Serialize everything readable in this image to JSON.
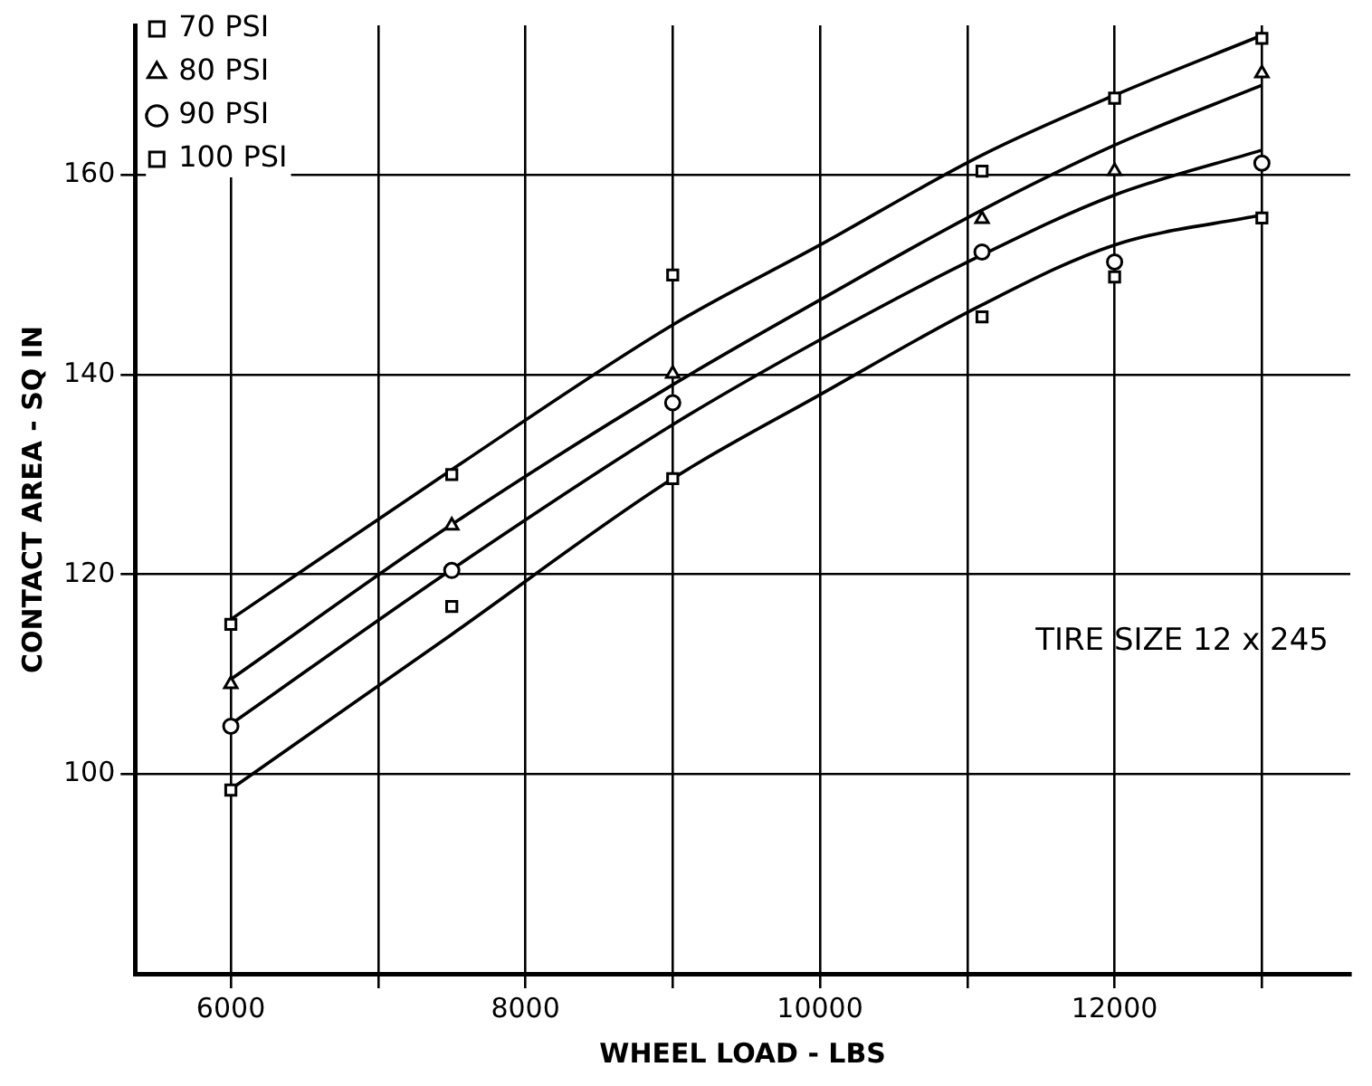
{
  "chart_data": {
    "type": "scatter",
    "xlabel": "WHEEL LOAD - LBS",
    "ylabel": "CONTACT AREA - SQ IN",
    "x": [
      6000,
      7500,
      9000,
      11100,
      12000,
      13000
    ],
    "series": [
      {
        "name": "70 PSI",
        "color": "#000000",
        "marker": "square",
        "values": [
          115,
          130,
          150,
          160.4,
          167.7,
          173.7
        ]
      },
      {
        "name": "80 PSI",
        "color": "#000000",
        "marker": "triangle",
        "values": [
          109,
          124.9,
          140.1,
          155.6,
          160.4,
          170.2
        ]
      },
      {
        "name": "90 PSI",
        "color": "#000000",
        "marker": "circle",
        "values": [
          104.8,
          120.4,
          137.2,
          152.3,
          151.3,
          161.2
        ]
      },
      {
        "name": "100 PSI",
        "color": "#000000",
        "marker": "square",
        "values": [
          98.4,
          116.8,
          129.6,
          145.8,
          149.8,
          155.7
        ]
      },
      {
        "type": "line",
        "color": "#000000",
        "marker": "none",
        "x": [
          6000,
          7500,
          9000,
          10000,
          11100,
          12000,
          13000
        ],
        "values": [
          115.5,
          130.5,
          145,
          153,
          162,
          168,
          174
        ]
      },
      {
        "type": "line",
        "color": "#000000",
        "marker": "none",
        "x": [
          6000,
          7500,
          9000,
          10000,
          11100,
          12000,
          13000
        ],
        "values": [
          109.5,
          125,
          139,
          147.5,
          156.5,
          163,
          169
        ]
      },
      {
        "type": "line",
        "color": "#000000",
        "marker": "none",
        "x": [
          6000,
          7500,
          9000,
          10000,
          11100,
          12000,
          13000
        ],
        "values": [
          105,
          120.5,
          135,
          143.5,
          152,
          158,
          162.5
        ]
      },
      {
        "type": "line",
        "color": "#000000",
        "marker": "none",
        "x": [
          6000,
          7500,
          9000,
          10000,
          11100,
          12000,
          13000
        ],
        "values": [
          98.5,
          114,
          129.6,
          138,
          147,
          153,
          156
        ]
      }
    ],
    "xlim": [
      5350,
      13600
    ],
    "ylim": [
      80,
      175
    ],
    "xticks": [
      6000,
      {
        "value": 7000,
        "label": null
      },
      8000,
      {
        "value": 9000,
        "label": null
      },
      10000,
      {
        "value": 11000,
        "label": null
      },
      12000,
      {
        "value": 13000,
        "label": null
      }
    ],
    "yticks": [
      100,
      120,
      140,
      160
    ],
    "grid": true,
    "legend": "top left",
    "line_style": "solid",
    "annotations": [
      "TIRE SIZE 12 x 245"
    ]
  }
}
